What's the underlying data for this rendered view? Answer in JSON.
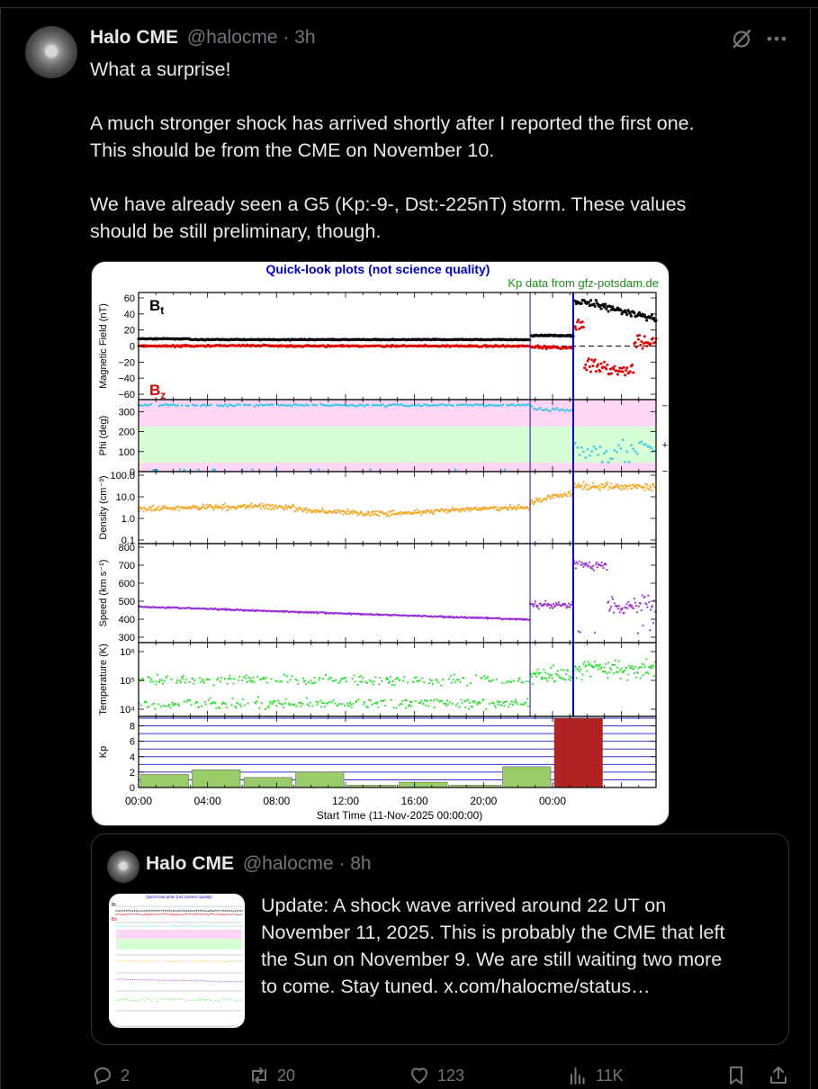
{
  "tweet": {
    "author_name": "Halo CME",
    "handle": "@halocme",
    "dot": "·",
    "time": "3h",
    "paragraphs": [
      "What a surprise!",
      "A much stronger shock has arrived shortly after I reported the first one.\nThis should be from the CME on November 10.",
      "We have already seen a G5 (Kp:-9-, Dst:-225nT) storm.  These values\nshould be still preliminary, though."
    ]
  },
  "plot": {
    "title": "Quick-look plots (not science quality)",
    "kp_source": "Kp data from gfz-potsdam.de",
    "bt_label": "B",
    "bt_sub": "t",
    "bz_label": "B",
    "bz_sub": "z",
    "xlabel": "Start Time (11-Nov-2025 00:00:00)",
    "x_ticks": [
      "00:00",
      "04:00",
      "08:00",
      "12:00",
      "16:00",
      "20:00",
      "00:00"
    ],
    "panels": [
      {
        "ylabel": "Magnetic Field (nT)",
        "ticks": [
          "60",
          "40",
          "20",
          "0",
          "−20",
          "−40",
          "−60"
        ]
      },
      {
        "ylabel": "Phi (deg)",
        "ticks": [
          "300",
          "200",
          "100",
          "0"
        ],
        "right_marks": [
          "−",
          "+",
          "−"
        ]
      },
      {
        "ylabel": "Density (cm⁻³)",
        "ticks": [
          "100.0",
          "10.0",
          "1.0",
          "0.1"
        ]
      },
      {
        "ylabel": "Speed (km s⁻¹)",
        "ticks": [
          "800",
          "700",
          "600",
          "500",
          "400",
          "300"
        ]
      },
      {
        "ylabel": "Temperature (K)",
        "ticks": [
          "10⁶",
          "10⁵",
          "10⁴"
        ]
      },
      {
        "ylabel": "Kp",
        "ticks": [
          "8",
          "6",
          "4",
          "2",
          "0"
        ]
      }
    ],
    "colors": {
      "bt": "#000000",
      "bz": "#e00000",
      "phi": "#3cc8e6",
      "density": "#f5a623",
      "speed": "#9b30d9",
      "temperature": "#2ee02e",
      "kp_green": "#9acd6a",
      "kp_red": "#b22222",
      "frame_title": "#0000cc",
      "kp_source": "#1a8c1a",
      "phi_away": "#ffd6f5",
      "phi_toward": "#d6ffd6"
    }
  },
  "chart_data": {
    "type": "bar",
    "title": "Quick-look plots (not science quality)",
    "xlabel": "Start Time (11-Nov-2025 00:00:00)",
    "ylabel": "Kp",
    "ylim": [
      0,
      9
    ],
    "categories": [
      "00:00",
      "03:00",
      "06:00",
      "09:00",
      "12:00",
      "15:00",
      "18:00",
      "21:00",
      "00:00"
    ],
    "values": [
      1.7,
      2.3,
      1.3,
      2.0,
      0.3,
      0.7,
      0.3,
      2.7,
      9.0
    ]
  },
  "quote": {
    "author_name": "Halo CME",
    "handle": "@halocme",
    "dot": "·",
    "time": "8h",
    "text": "Update: A shock wave arrived around 22 UT on\nNovember 11, 2025.  This is probably the CME that left\nthe Sun on November 9.  We are still waiting two more\nto come. Stay tuned.  x.com/halocme/status…",
    "thumb_title": "Quick-look plots (not science quality)"
  },
  "actions": {
    "replies": "2",
    "reposts": "20",
    "likes": "123",
    "views": "11K"
  },
  "icons": [
    "grok-icon",
    "more-icon",
    "reply-icon",
    "repost-icon",
    "like-icon",
    "views-icon",
    "bookmark-icon",
    "share-icon"
  ]
}
